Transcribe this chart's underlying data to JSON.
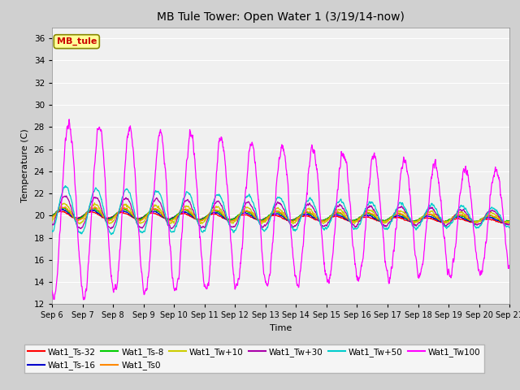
{
  "title": "MB Tule Tower: Open Water 1 (3/19/14-now)",
  "xlabel": "Time",
  "ylabel": "Temperature (C)",
  "ylim": [
    12,
    37
  ],
  "yticks": [
    12,
    14,
    16,
    18,
    20,
    22,
    24,
    26,
    28,
    30,
    32,
    34,
    36
  ],
  "fig_bg_color": "#d0d0d0",
  "plot_bg_color": "#f0f0f0",
  "grid_color": "#ffffff",
  "series": {
    "Wat1_Ts-32": {
      "color": "#ff0000"
    },
    "Wat1_Ts-16": {
      "color": "#0000cc"
    },
    "Wat1_Ts-8": {
      "color": "#00cc00"
    },
    "Wat1_Ts0": {
      "color": "#ff8800"
    },
    "Wat1_Tw+10": {
      "color": "#cccc00"
    },
    "Wat1_Tw+30": {
      "color": "#aa00aa"
    },
    "Wat1_Tw+50": {
      "color": "#00cccc"
    },
    "Wat1_Tw100": {
      "color": "#ff00ff"
    }
  },
  "inset_label": "MB_tule",
  "inset_label_color": "#cc0000",
  "inset_bg": "#ffff99",
  "inset_border": "#888800",
  "num_points": 2000,
  "days": 15
}
